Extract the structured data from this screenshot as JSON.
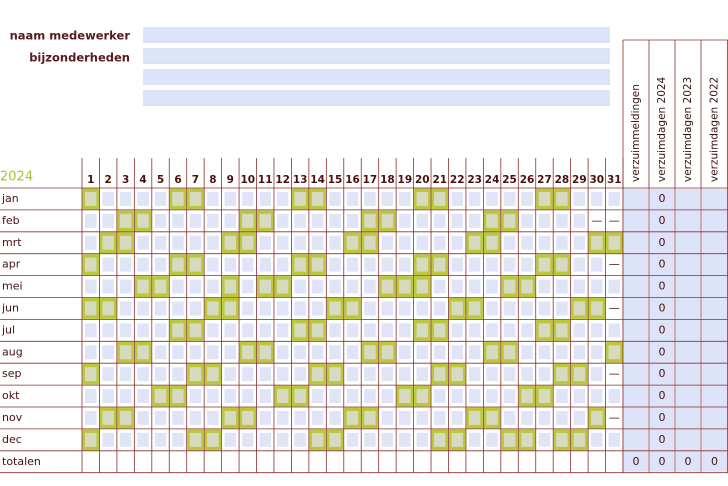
{
  "form": {
    "fields": [
      "naam medewerker",
      "bijzonderheden"
    ]
  },
  "calendar": {
    "year": "2024",
    "days": [
      1,
      2,
      3,
      4,
      5,
      6,
      7,
      8,
      9,
      10,
      11,
      12,
      13,
      14,
      15,
      16,
      17,
      18,
      19,
      20,
      21,
      22,
      23,
      24,
      25,
      26,
      27,
      28,
      29,
      30,
      31
    ],
    "no_day": "—",
    "columns": [
      "verzuimmeldingen",
      "verzuimdagen 2024",
      "verzuimdagen 2023",
      "verzuimdagen 2022"
    ],
    "months": [
      {
        "name": "jan",
        "days": 31,
        "free": [
          1,
          6,
          7,
          13,
          14,
          20,
          21,
          27,
          28
        ],
        "verzuimdagen": 0
      },
      {
        "name": "feb",
        "days": 29,
        "free": [
          3,
          4,
          10,
          11,
          17,
          18,
          24,
          25
        ],
        "verzuimdagen": 0
      },
      {
        "name": "mrt",
        "days": 31,
        "free": [
          2,
          3,
          9,
          10,
          16,
          17,
          23,
          24,
          30,
          31
        ],
        "verzuimdagen": 0
      },
      {
        "name": "apr",
        "days": 30,
        "free": [
          1,
          6,
          7,
          13,
          14,
          20,
          21,
          27,
          28
        ],
        "verzuimdagen": 0
      },
      {
        "name": "mei",
        "days": 31,
        "free": [
          4,
          5,
          9,
          11,
          12,
          18,
          19,
          20,
          25,
          26
        ],
        "verzuimdagen": 0
      },
      {
        "name": "jun",
        "days": 30,
        "free": [
          1,
          2,
          8,
          9,
          15,
          16,
          22,
          23,
          29,
          30
        ],
        "verzuimdagen": 0
      },
      {
        "name": "jul",
        "days": 31,
        "free": [
          6,
          7,
          13,
          14,
          20,
          21,
          27,
          28
        ],
        "verzuimdagen": 0
      },
      {
        "name": "aug",
        "days": 31,
        "free": [
          3,
          4,
          10,
          11,
          17,
          18,
          24,
          25,
          31
        ],
        "verzuimdagen": 0
      },
      {
        "name": "sep",
        "days": 30,
        "free": [
          1,
          7,
          8,
          14,
          15,
          21,
          22,
          28,
          29
        ],
        "verzuimdagen": 0
      },
      {
        "name": "okt",
        "days": 31,
        "free": [
          5,
          6,
          12,
          13,
          19,
          20,
          26,
          27
        ],
        "verzuimdagen": 0
      },
      {
        "name": "nov",
        "days": 30,
        "free": [
          2,
          3,
          9,
          10,
          16,
          17,
          23,
          24,
          30
        ],
        "verzuimdagen": 0
      },
      {
        "name": "dec",
        "days": 31,
        "free": [
          1,
          7,
          8,
          14,
          15,
          21,
          22,
          25,
          26,
          28,
          29
        ],
        "verzuimdagen": 0
      }
    ],
    "totals_label": "totalen",
    "totals": [
      0,
      0,
      0,
      0
    ]
  }
}
